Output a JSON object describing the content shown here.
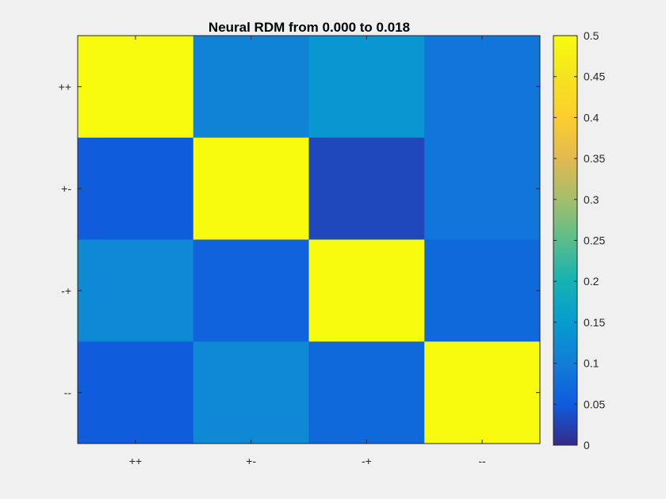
{
  "chart_data": {
    "type": "heatmap",
    "title": "Neural RDM from 0.000 to 0.018",
    "xlabel": "",
    "ylabel": "",
    "x_categories": [
      "++",
      "+-",
      "-+",
      "--"
    ],
    "y_categories": [
      "++",
      "+-",
      "-+",
      "--"
    ],
    "values": [
      [
        0.5,
        0.11,
        0.14,
        0.09
      ],
      [
        0.05,
        0.5,
        0.03,
        0.09
      ],
      [
        0.12,
        0.06,
        0.5,
        0.07
      ],
      [
        0.05,
        0.12,
        0.07,
        0.5
      ]
    ],
    "colorbar": {
      "range": [
        0,
        0.5
      ],
      "ticks": [
        "0",
        "0.05",
        "0.1",
        "0.15",
        "0.2",
        "0.25",
        "0.3",
        "0.35",
        "0.4",
        "0.45",
        "0.5"
      ],
      "colormap": "parula",
      "placement": "right"
    },
    "grid": false
  }
}
